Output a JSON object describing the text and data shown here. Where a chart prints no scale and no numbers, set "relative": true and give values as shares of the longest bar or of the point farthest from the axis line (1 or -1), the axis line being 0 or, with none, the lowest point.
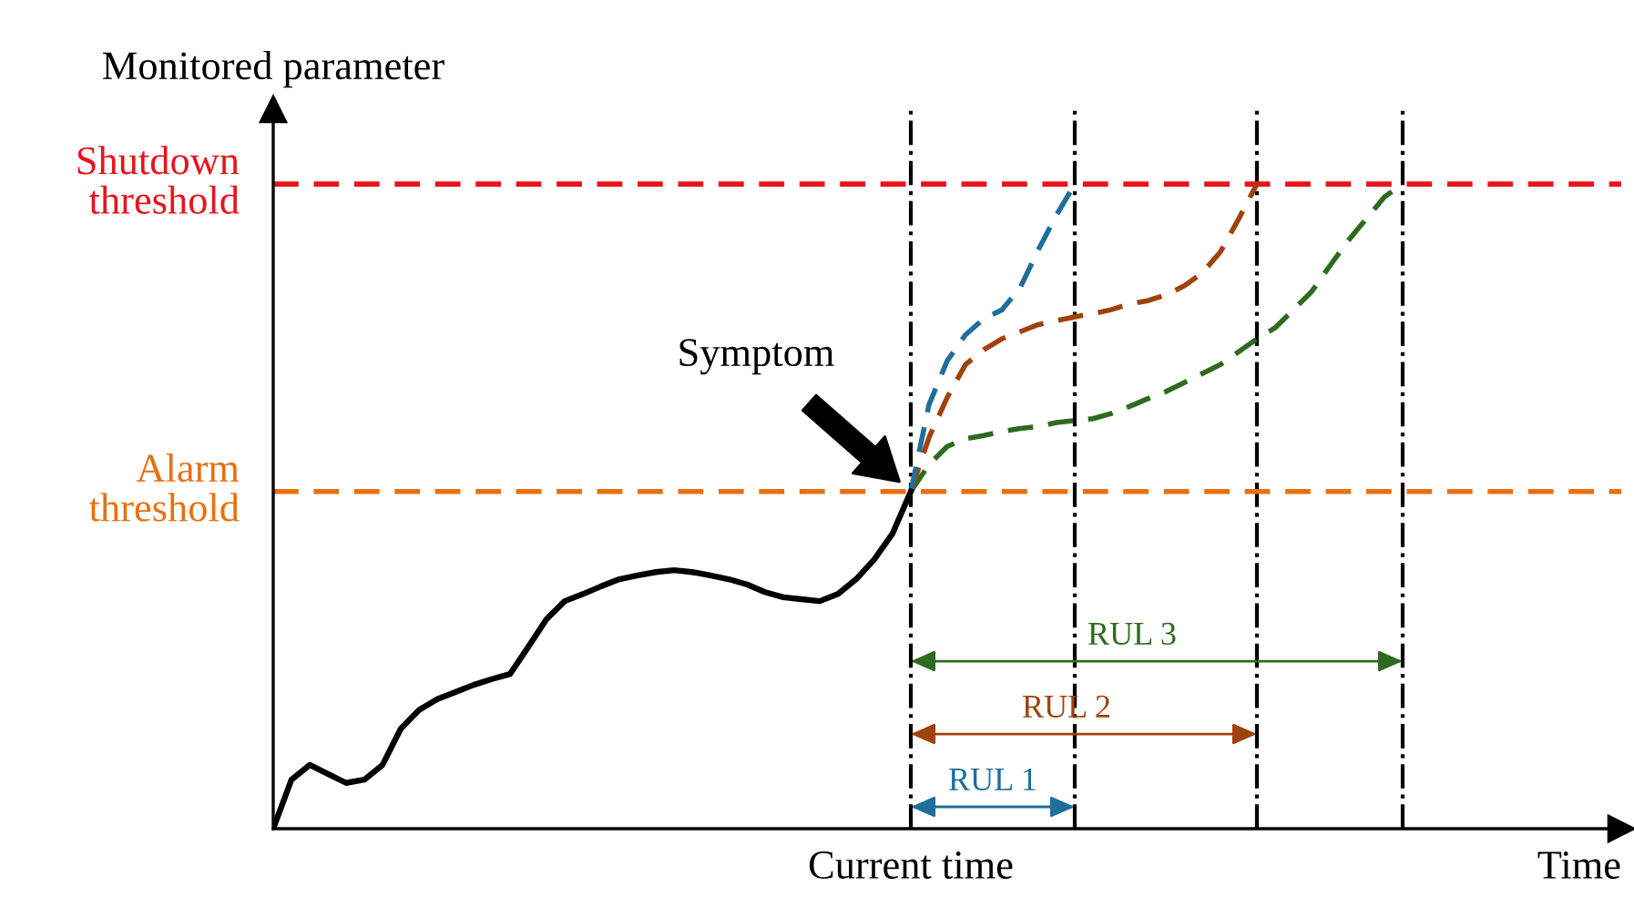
{
  "chart_data": {
    "type": "line",
    "relative": true,
    "xlabel": "Time",
    "ylabel": "Monitored parameter",
    "categories": [
      null,
      null,
      null,
      null,
      null,
      null,
      null,
      null,
      null,
      null,
      null,
      null,
      null,
      null,
      null,
      null,
      null,
      null,
      null,
      null,
      null,
      null,
      null,
      null,
      null,
      null,
      null,
      null,
      null,
      null,
      null,
      null,
      null,
      null,
      null,
      null,
      null,
      null,
      null,
      null,
      null,
      null,
      null,
      null,
      null,
      null,
      null,
      null,
      null,
      null,
      null,
      null,
      null,
      null,
      null,
      null,
      null,
      null,
      null,
      null,
      null,
      null,
      null
    ],
    "series": [
      {
        "color": "#000000",
        "line_style": "solid",
        "values": [
          0,
          0.076,
          0.099,
          0.085,
          0.071,
          0.076,
          0.099,
          0.155,
          0.184,
          0.201,
          0.212,
          0.223,
          0.232,
          0.24,
          0.282,
          0.325,
          0.353,
          0.364,
          0.376,
          0.387,
          0.393,
          0.398,
          0.401,
          0.398,
          0.393,
          0.387,
          0.379,
          0.367,
          0.359,
          0.356,
          0.353,
          0.364,
          0.387,
          0.418,
          0.458,
          0.523,
          null,
          null,
          null,
          null,
          null,
          null,
          null,
          null,
          null,
          null,
          null,
          null,
          null,
          null,
          null,
          null,
          null,
          null,
          null,
          null,
          null,
          null,
          null,
          null,
          null,
          null,
          null
        ]
      },
      {
        "color": "#1f6e9c",
        "line_style": "dashed",
        "values": [
          null,
          null,
          null,
          null,
          null,
          null,
          null,
          null,
          null,
          null,
          null,
          null,
          null,
          null,
          null,
          null,
          null,
          null,
          null,
          null,
          null,
          null,
          null,
          null,
          null,
          null,
          null,
          null,
          null,
          null,
          null,
          null,
          null,
          null,
          null,
          0.523,
          0.658,
          0.726,
          0.766,
          0.791,
          0.805,
          0.839,
          0.898,
          0.952,
          1,
          null,
          null,
          null,
          null,
          null,
          null,
          null,
          null,
          null,
          null,
          null,
          null,
          null,
          null,
          null,
          null,
          null,
          null
        ]
      },
      {
        "color": "#a0420c",
        "line_style": "dashed",
        "values": [
          null,
          null,
          null,
          null,
          null,
          null,
          null,
          null,
          null,
          null,
          null,
          null,
          null,
          null,
          null,
          null,
          null,
          null,
          null,
          null,
          null,
          null,
          null,
          null,
          null,
          null,
          null,
          null,
          null,
          null,
          null,
          null,
          null,
          null,
          null,
          0.523,
          0.607,
          0.669,
          0.72,
          0.743,
          0.76,
          0.771,
          0.782,
          0.788,
          0.794,
          0.799,
          0.805,
          0.814,
          0.819,
          0.828,
          0.842,
          0.862,
          0.895,
          0.946,
          1,
          null,
          null,
          null,
          null,
          null,
          null,
          null,
          null
        ]
      },
      {
        "color": "#2e6b1f",
        "line_style": "dashed",
        "values": [
          null,
          null,
          null,
          null,
          null,
          null,
          null,
          null,
          null,
          null,
          null,
          null,
          null,
          null,
          null,
          null,
          null,
          null,
          null,
          null,
          null,
          null,
          null,
          null,
          null,
          null,
          null,
          null,
          null,
          null,
          null,
          null,
          null,
          null,
          null,
          0.523,
          0.565,
          0.593,
          0.605,
          0.61,
          0.616,
          0.621,
          0.624,
          0.63,
          0.633,
          0.636,
          0.644,
          0.655,
          0.667,
          0.678,
          0.692,
          0.706,
          0.72,
          0.74,
          0.76,
          0.777,
          0.805,
          0.833,
          0.873,
          0.912,
          0.946,
          0.98,
          1
        ]
      }
    ],
    "ref_lines": [
      {
        "axis": "y",
        "value": 1,
        "label": "Shutdown\nthreshold",
        "color": "#e8141b",
        "line_style": "dashed"
      },
      {
        "axis": "y",
        "value": 0.523,
        "label": "Alarm\nthreshold",
        "color": "#e8700f",
        "line_style": "dashed"
      }
    ],
    "grid": "x",
    "annotations": [
      {
        "text": "Symptom",
        "y": 0.523
      },
      "RUL 1",
      "RUL 2",
      "RUL 3",
      "Current time"
    ]
  }
}
